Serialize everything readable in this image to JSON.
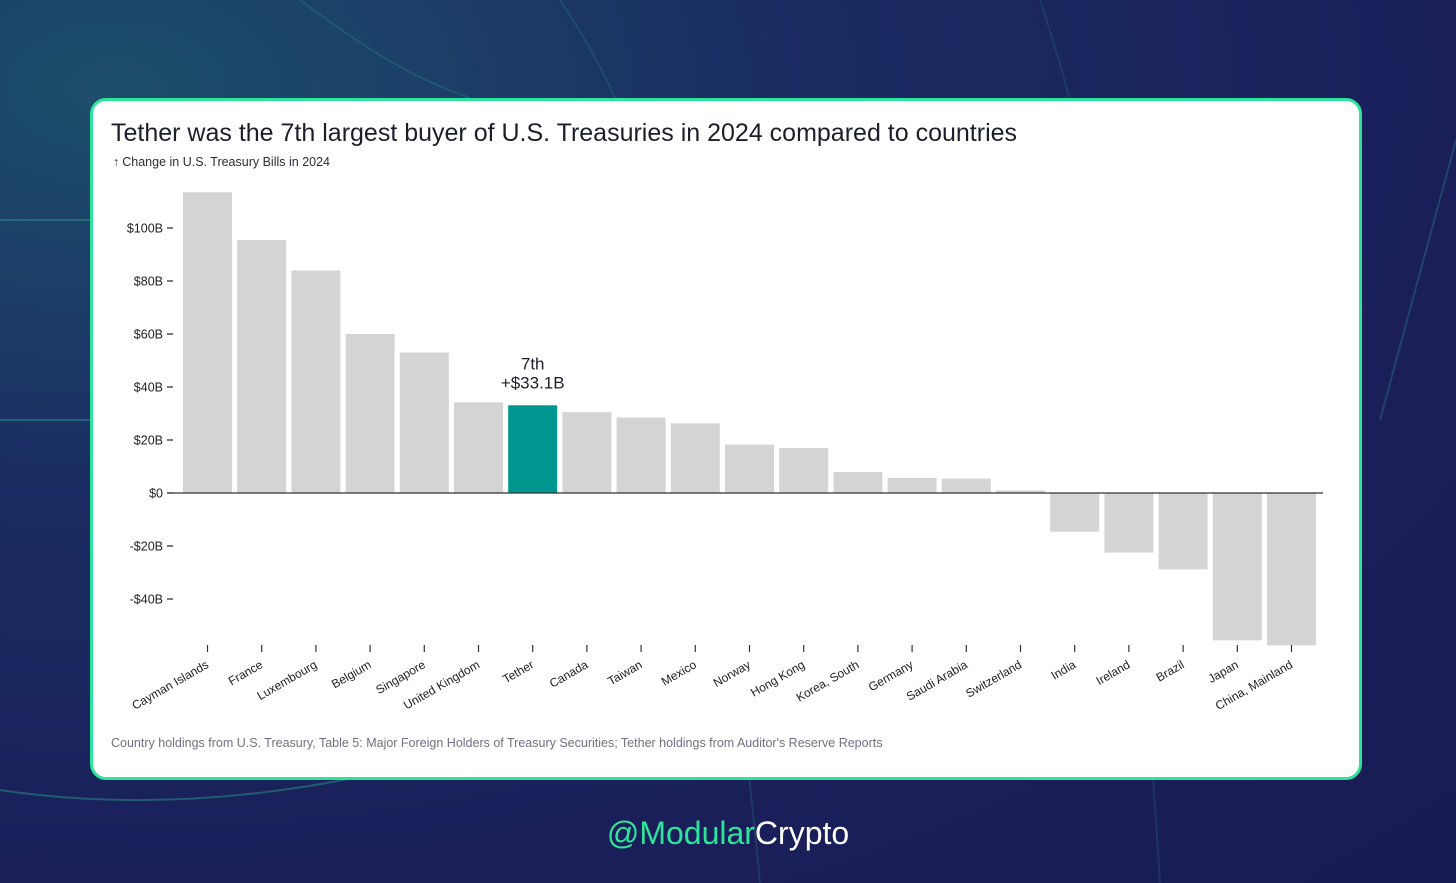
{
  "colors": {
    "accent": "#2ee39a",
    "bar_default": "#d4d4d4",
    "bar_highlight": "#009690",
    "brand_green": "#2ee39a",
    "brand_white": "#ffffff"
  },
  "chart_data": {
    "type": "bar",
    "title": "Tether was the 7th largest buyer of U.S. Treasuries in 2024 compared to countries",
    "subtitle": "Change in U.S. Treasury Bills in 2024",
    "subtitle_icon": "arrow-up-icon",
    "xlabel": "",
    "ylabel": "",
    "ylim": [
      -58,
      115
    ],
    "y_ticks": [
      {
        "value": 100,
        "label": "$100B"
      },
      {
        "value": 80,
        "label": "$80B"
      },
      {
        "value": 60,
        "label": "$60B"
      },
      {
        "value": 40,
        "label": "$40B"
      },
      {
        "value": 20,
        "label": "$20B"
      },
      {
        "value": 0,
        "label": "$0"
      },
      {
        "value": -20,
        "label": "-$20B"
      },
      {
        "value": -40,
        "label": "-$40B"
      }
    ],
    "categories": [
      "Cayman Islands",
      "France",
      "Luxembourg",
      "Belgium",
      "Singapore",
      "United Kingdom",
      "Tether",
      "Canada",
      "Taiwan",
      "Mexico",
      "Norway",
      "Hong Kong",
      "Korea, South",
      "Germany",
      "Saudi Arabia",
      "Switzerland",
      "India",
      "Ireland",
      "Brazil",
      "Japan",
      "China, Mainland"
    ],
    "values": [
      113.5,
      95.5,
      84,
      60,
      53,
      34.2,
      33.1,
      30.5,
      28.5,
      26.3,
      18.3,
      17,
      7.9,
      5.7,
      5.4,
      1,
      -14.6,
      -22.5,
      -28.8,
      -55.6,
      -57.5
    ],
    "highlight_index": 6,
    "annotation": {
      "rank": "7th",
      "value_label": "+$33.1B"
    },
    "grid": false,
    "legend": "none"
  },
  "footnote": "Country holdings from U.S. Treasury, Table 5: Major Foreign Holders of Treasury Securities; Tether holdings from Auditor's Reserve Reports",
  "brand": {
    "handle_prefix": "@Modular",
    "handle_suffix": "Crypto"
  }
}
